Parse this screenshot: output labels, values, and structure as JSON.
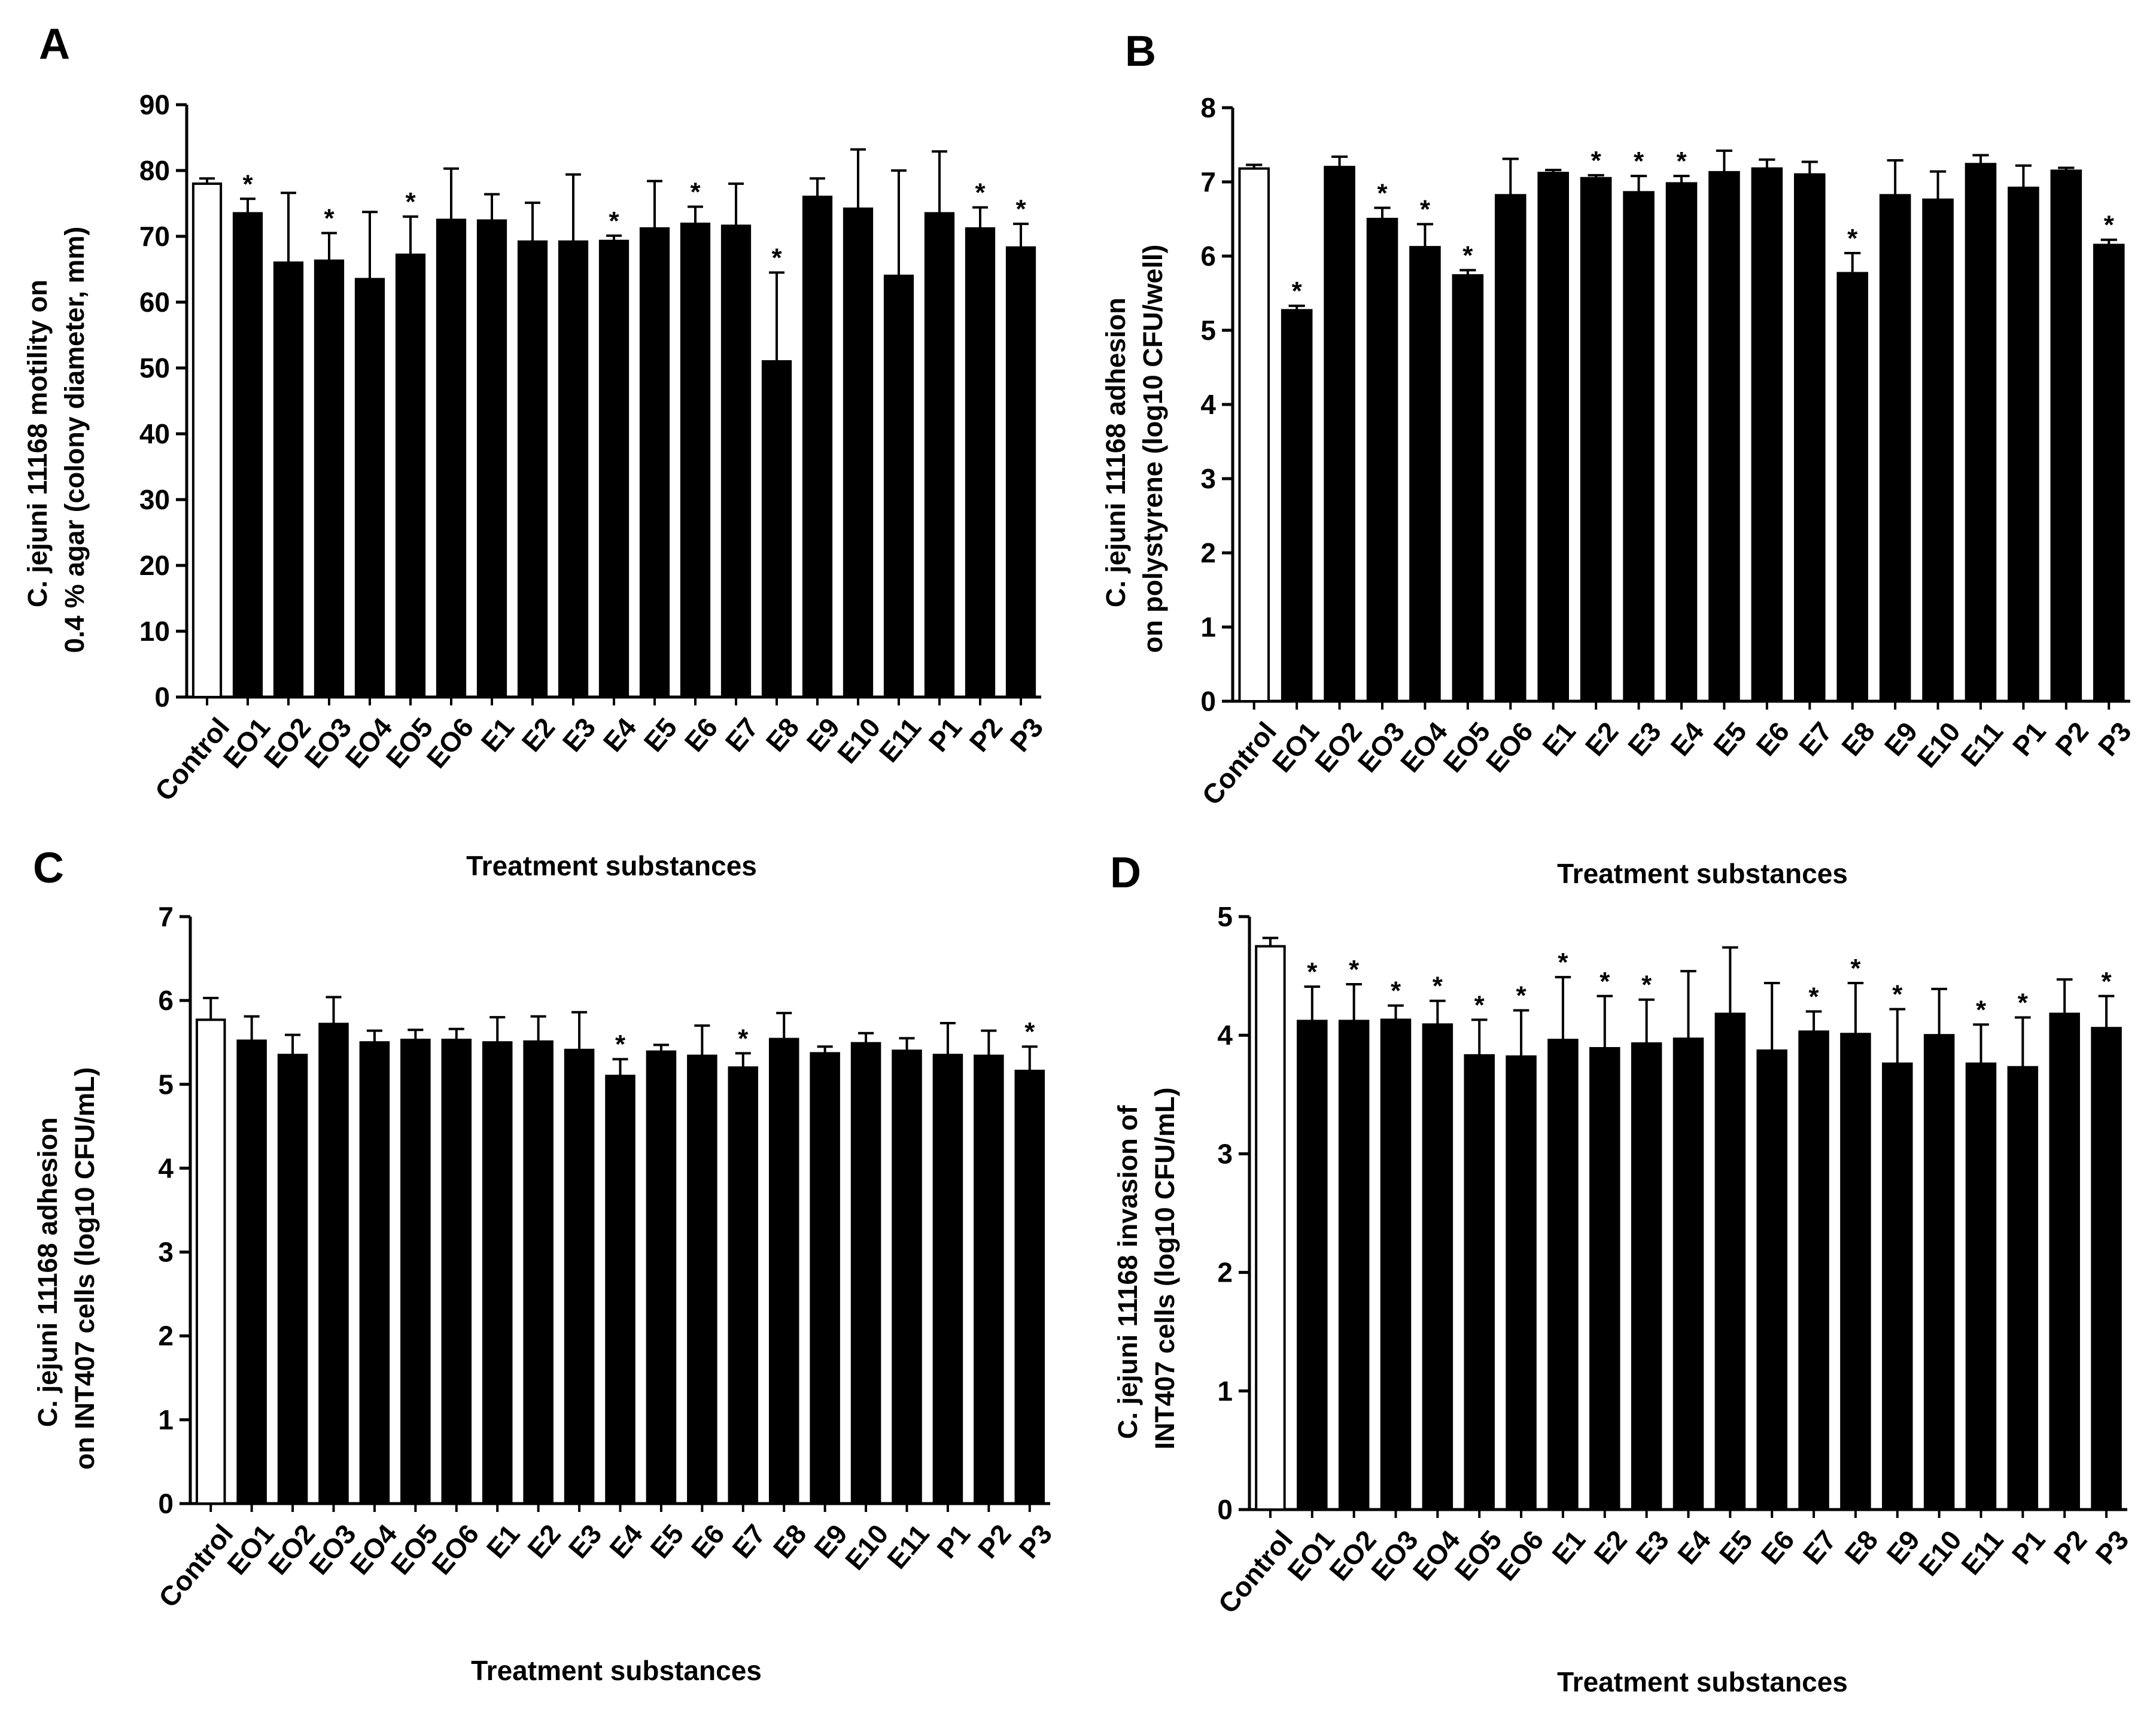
{
  "figure": {
    "background": "#ffffff",
    "bar_fill": "#000000",
    "control_fill": "#ffffff",
    "stroke": "#000000"
  },
  "chart_data": [
    {
      "panel": "A",
      "type": "bar",
      "title": "",
      "ylabel_line1": "C. jejuni 11168 motility on",
      "ylabel_line2": "0.4 % agar (colony diameter, mm)",
      "xlabel": "Treatment substances",
      "ylim": [
        0,
        90
      ],
      "yticks": [
        0,
        10,
        20,
        30,
        40,
        50,
        60,
        70,
        80,
        90
      ],
      "categories": [
        "Control",
        "EO1",
        "EO2",
        "EO3",
        "EO4",
        "EO5",
        "EO6",
        "E1",
        "E2",
        "E3",
        "E4",
        "E5",
        "E6",
        "E7",
        "E8",
        "E9",
        "E10",
        "E11",
        "P1",
        "P2",
        "P3"
      ],
      "values": [
        78.0,
        73.5,
        66.0,
        66.3,
        63.5,
        67.2,
        72.5,
        72.4,
        69.2,
        69.2,
        69.3,
        71.2,
        71.9,
        71.6,
        51.0,
        76.0,
        74.2,
        64.0,
        73.5,
        71.2,
        68.3
      ],
      "errors": [
        0.8,
        2.2,
        10.6,
        4.2,
        10.2,
        5.8,
        7.8,
        4.0,
        5.9,
        10.2,
        0.8,
        7.2,
        2.6,
        6.4,
        13.5,
        2.8,
        9.0,
        16.0,
        9.4,
        3.2,
        3.6
      ],
      "significant": [
        false,
        true,
        false,
        true,
        false,
        true,
        false,
        false,
        false,
        false,
        true,
        false,
        true,
        false,
        true,
        false,
        false,
        false,
        false,
        true,
        true
      ],
      "sig_symbol": "*"
    },
    {
      "panel": "B",
      "type": "bar",
      "title": "",
      "ylabel_line1": "C. jejuni 11168 adhesion",
      "ylabel_line2": "on polystyrene (log10 CFU/well)",
      "xlabel": "Treatment substances",
      "ylim": [
        0,
        8
      ],
      "yticks": [
        0,
        1,
        2,
        3,
        4,
        5,
        6,
        7,
        8
      ],
      "categories": [
        "Control",
        "EO1",
        "EO2",
        "EO3",
        "EO4",
        "EO5",
        "EO6",
        "E1",
        "E2",
        "E3",
        "E4",
        "E5",
        "E6",
        "E7",
        "E8",
        "E9",
        "E10",
        "E11",
        "P1",
        "P2",
        "P3"
      ],
      "values": [
        7.18,
        5.27,
        7.2,
        6.5,
        6.12,
        5.74,
        6.82,
        7.12,
        7.05,
        6.86,
        6.98,
        7.13,
        7.18,
        7.1,
        5.77,
        6.82,
        6.76,
        7.24,
        6.92,
        7.15,
        6.15
      ],
      "errors": [
        0.05,
        0.06,
        0.14,
        0.15,
        0.31,
        0.07,
        0.49,
        0.04,
        0.04,
        0.22,
        0.1,
        0.29,
        0.12,
        0.17,
        0.27,
        0.47,
        0.38,
        0.12,
        0.3,
        0.04,
        0.07
      ],
      "significant": [
        false,
        true,
        false,
        true,
        true,
        true,
        false,
        false,
        true,
        true,
        true,
        false,
        false,
        false,
        true,
        false,
        false,
        false,
        false,
        false,
        true
      ],
      "sig_symbol": "*"
    },
    {
      "panel": "C",
      "type": "bar",
      "title": "",
      "ylabel_line1": "C. jejuni 11168 adhesion",
      "ylabel_line2": "on INT407 cells (log10 CFU/mL)",
      "xlabel": "Treatment substances",
      "ylim": [
        0,
        7
      ],
      "yticks": [
        0,
        1,
        2,
        3,
        4,
        5,
        6,
        7
      ],
      "categories": [
        "Control",
        "EO1",
        "EO2",
        "EO3",
        "EO4",
        "EO5",
        "EO6",
        "E1",
        "E2",
        "E3",
        "E4",
        "E5",
        "E6",
        "E7",
        "E8",
        "E9",
        "E10",
        "E11",
        "P1",
        "P2",
        "P3"
      ],
      "values": [
        5.77,
        5.52,
        5.35,
        5.72,
        5.5,
        5.53,
        5.53,
        5.5,
        5.51,
        5.41,
        5.1,
        5.39,
        5.34,
        5.2,
        5.54,
        5.37,
        5.49,
        5.4,
        5.35,
        5.34,
        5.16
      ],
      "errors": [
        0.26,
        0.29,
        0.24,
        0.32,
        0.14,
        0.12,
        0.13,
        0.3,
        0.3,
        0.45,
        0.2,
        0.08,
        0.36,
        0.17,
        0.31,
        0.08,
        0.12,
        0.15,
        0.38,
        0.3,
        0.29
      ],
      "significant": [
        false,
        false,
        false,
        false,
        false,
        false,
        false,
        false,
        false,
        false,
        true,
        false,
        false,
        true,
        false,
        false,
        false,
        false,
        false,
        false,
        true
      ],
      "sig_symbol": "*"
    },
    {
      "panel": "D",
      "type": "bar",
      "title": "",
      "ylabel_line1": "C. jejuni 11168 invasion of",
      "ylabel_line2": "INT407 cells (log10 CFU/mL)",
      "xlabel": "Treatment substances",
      "ylim": [
        0,
        5
      ],
      "yticks": [
        0,
        1,
        2,
        3,
        4,
        5
      ],
      "categories": [
        "Control",
        "EO1",
        "EO2",
        "EO3",
        "EO4",
        "EO5",
        "EO6",
        "E1",
        "E2",
        "E3",
        "E4",
        "E5",
        "E6",
        "E7",
        "E8",
        "E9",
        "E10",
        "E11",
        "P1",
        "P2",
        "P3"
      ],
      "values": [
        4.75,
        4.12,
        4.12,
        4.13,
        4.09,
        3.83,
        3.82,
        3.96,
        3.89,
        3.93,
        3.97,
        4.18,
        3.87,
        4.03,
        4.01,
        3.76,
        4.0,
        3.76,
        3.73,
        4.18,
        4.06
      ],
      "errors": [
        0.07,
        0.29,
        0.31,
        0.12,
        0.2,
        0.3,
        0.39,
        0.53,
        0.44,
        0.37,
        0.57,
        0.56,
        0.57,
        0.17,
        0.43,
        0.46,
        0.39,
        0.33,
        0.42,
        0.29,
        0.27
      ],
      "significant": [
        false,
        true,
        true,
        true,
        true,
        true,
        true,
        true,
        true,
        true,
        false,
        false,
        false,
        true,
        true,
        true,
        false,
        true,
        true,
        false,
        true
      ],
      "sig_symbol": "*"
    }
  ]
}
